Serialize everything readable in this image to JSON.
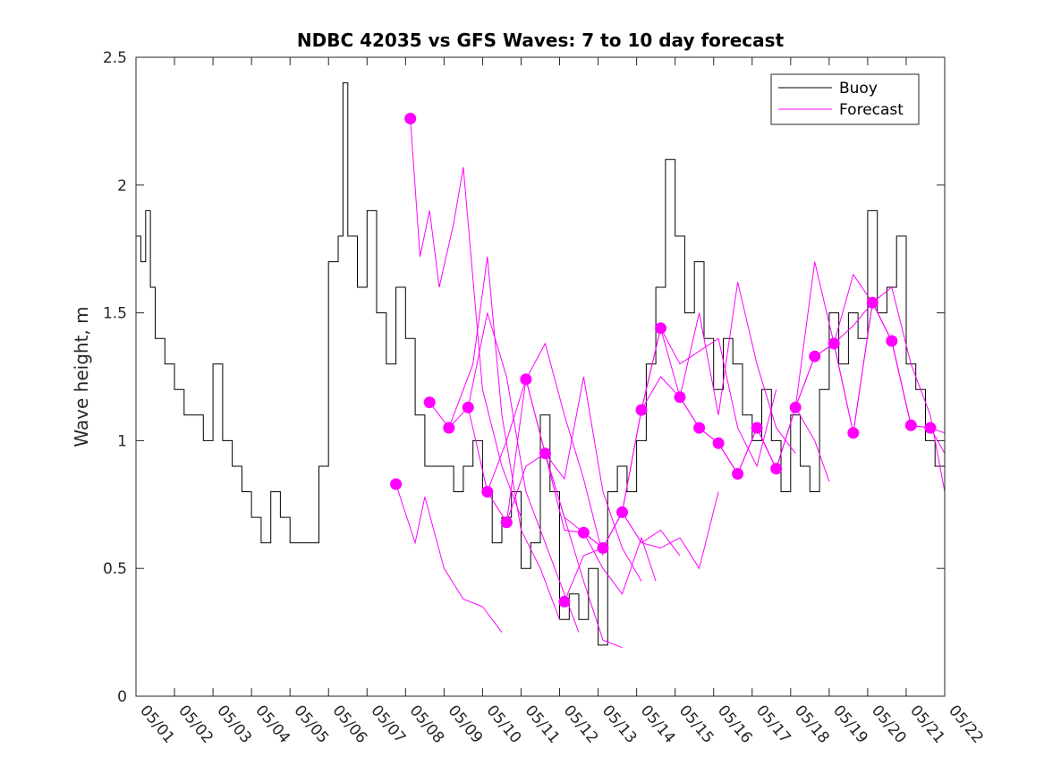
{
  "chart_data": {
    "type": "line",
    "title": "NDBC 42035 vs GFS Waves: 7 to 10 day forecast",
    "xlabel": "",
    "ylabel": "Wave height, m",
    "xlim": [
      "05/01",
      "05/22"
    ],
    "ylim": [
      0,
      2.5
    ],
    "x_ticks": [
      "05/01",
      "05/02",
      "05/03",
      "05/04",
      "05/05",
      "05/06",
      "05/07",
      "05/08",
      "05/09",
      "05/10",
      "05/11",
      "05/12",
      "05/13",
      "05/14",
      "05/15",
      "05/16",
      "05/17",
      "05/18",
      "05/19",
      "05/20",
      "05/21",
      "05/22"
    ],
    "y_ticks": [
      "0",
      "0.5",
      "1",
      "1.5",
      "2",
      "2.5"
    ],
    "grid": false,
    "legend": {
      "placement": "top-right",
      "entries": [
        {
          "label": "Buoy",
          "color": "#000000"
        },
        {
          "label": "Forecast",
          "color": "#ff00ff"
        }
      ]
    },
    "colors": {
      "buoy": "#000000",
      "forecast": "#ff00ff"
    },
    "buoy": {
      "name": "Buoy",
      "x": [
        "05/01 00:00",
        "05/01 03:00",
        "05/01 06:00",
        "05/01 09:00",
        "05/01 12:00",
        "05/01 18:00",
        "05/02 00:00",
        "05/02 06:00",
        "05/02 12:00",
        "05/02 18:00",
        "05/03 00:00",
        "05/03 06:00",
        "05/03 12:00",
        "05/03 18:00",
        "05/04 00:00",
        "05/04 06:00",
        "05/04 12:00",
        "05/04 18:00",
        "05/05 00:00",
        "05/05 06:00",
        "05/05 12:00",
        "05/05 18:00",
        "05/06 00:00",
        "05/06 06:00",
        "05/06 09:00",
        "05/06 12:00",
        "05/06 18:00",
        "05/07 00:00",
        "05/07 06:00",
        "05/07 12:00",
        "05/07 18:00",
        "05/08 00:00",
        "05/08 06:00",
        "05/08 12:00",
        "05/08 18:00",
        "05/09 00:00",
        "05/09 06:00",
        "05/09 12:00",
        "05/09 18:00",
        "05/10 00:00",
        "05/10 06:00",
        "05/10 12:00",
        "05/10 18:00",
        "05/11 00:00",
        "05/11 06:00",
        "05/11 12:00",
        "05/11 18:00",
        "05/12 00:00",
        "05/12 06:00",
        "05/12 12:00",
        "05/12 18:00",
        "05/13 00:00",
        "05/13 06:00",
        "05/13 12:00",
        "05/13 18:00",
        "05/14 00:00",
        "05/14 06:00",
        "05/14 12:00",
        "05/14 18:00",
        "05/15 00:00",
        "05/15 06:00",
        "05/15 12:00",
        "05/15 18:00",
        "05/16 00:00",
        "05/16 06:00",
        "05/16 12:00",
        "05/16 18:00",
        "05/17 00:00",
        "05/17 06:00",
        "05/17 12:00",
        "05/17 18:00",
        "05/18 00:00",
        "05/18 06:00",
        "05/18 12:00",
        "05/18 18:00",
        "05/19 00:00",
        "05/19 06:00",
        "05/19 12:00",
        "05/19 18:00",
        "05/20 00:00",
        "05/20 06:00",
        "05/20 12:00",
        "05/20 18:00",
        "05/21 00:00",
        "05/21 06:00",
        "05/21 12:00",
        "05/21 18:00",
        "05/22 00:00"
      ],
      "y": [
        1.8,
        1.7,
        1.9,
        1.6,
        1.4,
        1.3,
        1.2,
        1.1,
        1.1,
        1.0,
        1.3,
        1.0,
        0.9,
        0.8,
        0.7,
        0.6,
        0.8,
        0.7,
        0.6,
        0.6,
        0.6,
        0.9,
        1.7,
        1.8,
        2.4,
        1.8,
        1.6,
        1.9,
        1.5,
        1.3,
        1.6,
        1.4,
        1.1,
        0.9,
        0.9,
        0.9,
        0.8,
        0.9,
        1.0,
        0.8,
        0.6,
        0.7,
        0.8,
        0.5,
        0.6,
        1.1,
        0.8,
        0.3,
        0.4,
        0.3,
        0.5,
        0.2,
        0.8,
        0.9,
        0.8,
        1.0,
        1.3,
        1.6,
        2.1,
        1.8,
        1.5,
        1.7,
        1.4,
        1.2,
        1.4,
        1.3,
        1.1,
        1.0,
        1.2,
        1.0,
        0.8,
        1.1,
        0.9,
        0.8,
        1.2,
        1.5,
        1.3,
        1.5,
        1.4,
        1.9,
        1.5,
        1.6,
        1.8,
        1.3,
        1.2,
        1.0,
        0.9,
        0.9
      ]
    },
    "forecast": {
      "name": "Forecast",
      "points": {
        "x": [
          "05/07 18:00",
          "05/08 03:00",
          "05/08 15:00",
          "05/09 03:00",
          "05/09 15:00",
          "05/10 03:00",
          "05/10 15:00",
          "05/11 03:00",
          "05/11 15:00",
          "05/12 03:00",
          "05/12 15:00",
          "05/13 03:00",
          "05/13 15:00",
          "05/14 03:00",
          "05/14 15:00",
          "05/15 03:00",
          "05/15 15:00",
          "05/16 03:00",
          "05/16 15:00",
          "05/17 03:00",
          "05/17 15:00",
          "05/18 03:00",
          "05/18 15:00",
          "05/19 03:00",
          "05/19 15:00",
          "05/20 03:00",
          "05/20 15:00",
          "05/21 03:00",
          "05/21 15:00"
        ],
        "y": [
          0.83,
          2.26,
          1.15,
          1.05,
          1.13,
          0.8,
          0.68,
          1.24,
          0.95,
          0.37,
          0.64,
          0.58,
          0.72,
          1.12,
          1.44,
          1.17,
          1.05,
          0.99,
          0.87,
          1.05,
          0.89,
          1.13,
          1.33,
          1.38,
          1.03,
          1.54,
          1.39,
          1.06,
          1.05
        ]
      },
      "runs": [
        {
          "x": [
            "05/07 18:00",
            "05/08 06:00",
            "05/08 12:00",
            "05/09 00:00",
            "05/09 12:00",
            "05/10 00:00",
            "05/10 12:00"
          ],
          "y": [
            0.83,
            0.6,
            0.78,
            0.5,
            0.38,
            0.35,
            0.25
          ]
        },
        {
          "x": [
            "05/08 03:00",
            "05/08 09:00",
            "05/08 15:00",
            "05/08 21:00",
            "05/09 06:00",
            "05/09 12:00",
            "05/10 00:00",
            "05/10 12:00",
            "05/11 00:00"
          ],
          "y": [
            2.26,
            1.72,
            1.9,
            1.6,
            1.85,
            2.07,
            1.2,
            0.9,
            0.7
          ]
        },
        {
          "x": [
            "05/08 15:00",
            "05/09 03:00",
            "05/09 18:00",
            "05/10 03:00",
            "05/10 12:00",
            "05/11 00:00",
            "05/11 12:00",
            "05/12 00:00"
          ],
          "y": [
            1.15,
            1.05,
            1.3,
            1.72,
            1.1,
            0.65,
            0.5,
            0.3
          ]
        },
        {
          "x": [
            "05/09 03:00",
            "05/09 15:00",
            "05/10 03:00",
            "05/10 15:00",
            "05/11 03:00",
            "05/11 15:00",
            "05/12 03:00",
            "05/12 12:00"
          ],
          "y": [
            1.05,
            1.13,
            1.5,
            1.25,
            0.8,
            0.6,
            0.4,
            0.25
          ]
        },
        {
          "x": [
            "05/09 15:00",
            "05/10 03:00",
            "05/10 15:00",
            "05/11 03:00",
            "05/11 15:00",
            "05/12 03:00",
            "05/12 15:00",
            "05/13 03:00"
          ],
          "y": [
            1.13,
            0.8,
            1.0,
            1.24,
            1.38,
            1.1,
            0.85,
            0.55
          ]
        },
        {
          "x": [
            "05/10 03:00",
            "05/10 15:00",
            "05/11 03:00",
            "05/11 15:00",
            "05/12 03:00",
            "05/12 15:00",
            "05/13 03:00",
            "05/13 15:00"
          ],
          "y": [
            0.8,
            0.68,
            0.9,
            0.95,
            0.7,
            0.45,
            0.22,
            0.19
          ]
        },
        {
          "x": [
            "05/10 15:00",
            "05/11 03:00",
            "05/11 15:00",
            "05/12 03:00",
            "05/12 15:00",
            "05/13 03:00",
            "05/13 15:00",
            "05/14 03:00"
          ],
          "y": [
            0.68,
            1.24,
            0.95,
            0.85,
            1.25,
            0.8,
            0.58,
            0.45
          ]
        },
        {
          "x": [
            "05/11 03:00",
            "05/11 15:00",
            "05/12 03:00",
            "05/12 15:00",
            "05/13 03:00",
            "05/13 15:00",
            "05/14 03:00",
            "05/14 12:00"
          ],
          "y": [
            1.24,
            0.95,
            0.7,
            0.64,
            0.5,
            0.4,
            0.62,
            0.45
          ]
        },
        {
          "x": [
            "05/11 15:00",
            "05/12 03:00",
            "05/12 15:00",
            "05/13 03:00",
            "05/13 15:00",
            "05/14 03:00",
            "05/14 15:00",
            "05/15 03:00"
          ],
          "y": [
            0.95,
            0.65,
            0.64,
            0.58,
            0.72,
            0.6,
            0.65,
            0.55
          ]
        },
        {
          "x": [
            "05/12 03:00",
            "05/12 15:00",
            "05/13 03:00",
            "05/13 15:00",
            "05/14 03:00",
            "05/14 15:00",
            "05/15 03:00",
            "05/15 15:00",
            "05/16 03:00"
          ],
          "y": [
            0.37,
            0.55,
            0.58,
            0.72,
            0.6,
            0.58,
            0.62,
            0.5,
            0.8
          ]
        },
        {
          "x": [
            "05/12 15:00",
            "05/13 03:00",
            "05/13 15:00",
            "05/14 03:00",
            "05/14 15:00",
            "05/15 03:00",
            "05/15 15:00",
            "05/16 03:00",
            "05/16 15:00"
          ],
          "y": [
            0.64,
            0.58,
            0.72,
            1.12,
            1.44,
            1.17,
            1.05,
            0.99,
            0.87
          ]
        },
        {
          "x": [
            "05/13 15:00",
            "05/14 03:00",
            "05/14 15:00",
            "05/15 03:00",
            "05/15 15:00",
            "05/16 03:00",
            "05/16 15:00",
            "05/17 03:00",
            "05/17 15:00"
          ],
          "y": [
            0.72,
            1.12,
            1.44,
            1.3,
            1.35,
            1.4,
            1.05,
            0.9,
            1.2
          ]
        },
        {
          "x": [
            "05/14 03:00",
            "05/14 15:00",
            "05/15 03:00",
            "05/15 15:00",
            "05/16 03:00",
            "05/16 15:00",
            "05/17 03:00",
            "05/17 15:00",
            "05/18 03:00"
          ],
          "y": [
            1.12,
            1.25,
            1.17,
            1.5,
            1.1,
            1.62,
            1.3,
            1.05,
            0.95
          ]
        },
        {
          "x": [
            "05/15 03:00",
            "05/15 15:00",
            "05/16 03:00",
            "05/16 15:00",
            "05/17 03:00",
            "05/17 15:00",
            "05/18 03:00",
            "05/18 15:00",
            "05/19 00:00"
          ],
          "y": [
            1.17,
            1.05,
            0.99,
            0.87,
            1.05,
            0.89,
            1.13,
            1.0,
            0.84
          ]
        },
        {
          "x": [
            "05/16 03:00",
            "05/16 15:00",
            "05/17 03:00",
            "05/17 15:00",
            "05/18 03:00",
            "05/18 15:00",
            "05/19 03:00",
            "05/19 15:00",
            "05/20 03:00"
          ],
          "y": [
            0.99,
            0.87,
            1.05,
            0.89,
            1.13,
            1.33,
            1.38,
            1.45,
            1.54
          ]
        },
        {
          "x": [
            "05/17 03:00",
            "05/17 15:00",
            "05/18 03:00",
            "05/18 15:00",
            "05/19 03:00",
            "05/19 15:00",
            "05/20 03:00",
            "05/20 15:00",
            "05/21 03:00"
          ],
          "y": [
            1.05,
            0.89,
            1.13,
            1.7,
            1.38,
            1.03,
            1.54,
            1.39,
            1.06
          ]
        },
        {
          "x": [
            "05/18 03:00",
            "05/18 15:00",
            "05/19 03:00",
            "05/19 15:00",
            "05/20 03:00",
            "05/20 15:00",
            "05/21 03:00",
            "05/21 15:00",
            "05/22 00:00"
          ],
          "y": [
            1.13,
            1.33,
            1.38,
            1.65,
            1.54,
            1.39,
            1.06,
            1.05,
            0.95
          ]
        },
        {
          "x": [
            "05/19 03:00",
            "05/19 15:00",
            "05/20 03:00",
            "05/20 15:00",
            "05/21 03:00",
            "05/21 15:00",
            "05/22 00:00"
          ],
          "y": [
            1.38,
            1.03,
            1.54,
            1.6,
            1.3,
            1.1,
            0.8
          ]
        },
        {
          "x": [
            "05/20 03:00",
            "05/20 15:00",
            "05/21 03:00",
            "05/21 15:00",
            "05/22 00:00"
          ],
          "y": [
            1.54,
            1.39,
            1.06,
            1.05,
            1.03
          ]
        }
      ]
    }
  }
}
